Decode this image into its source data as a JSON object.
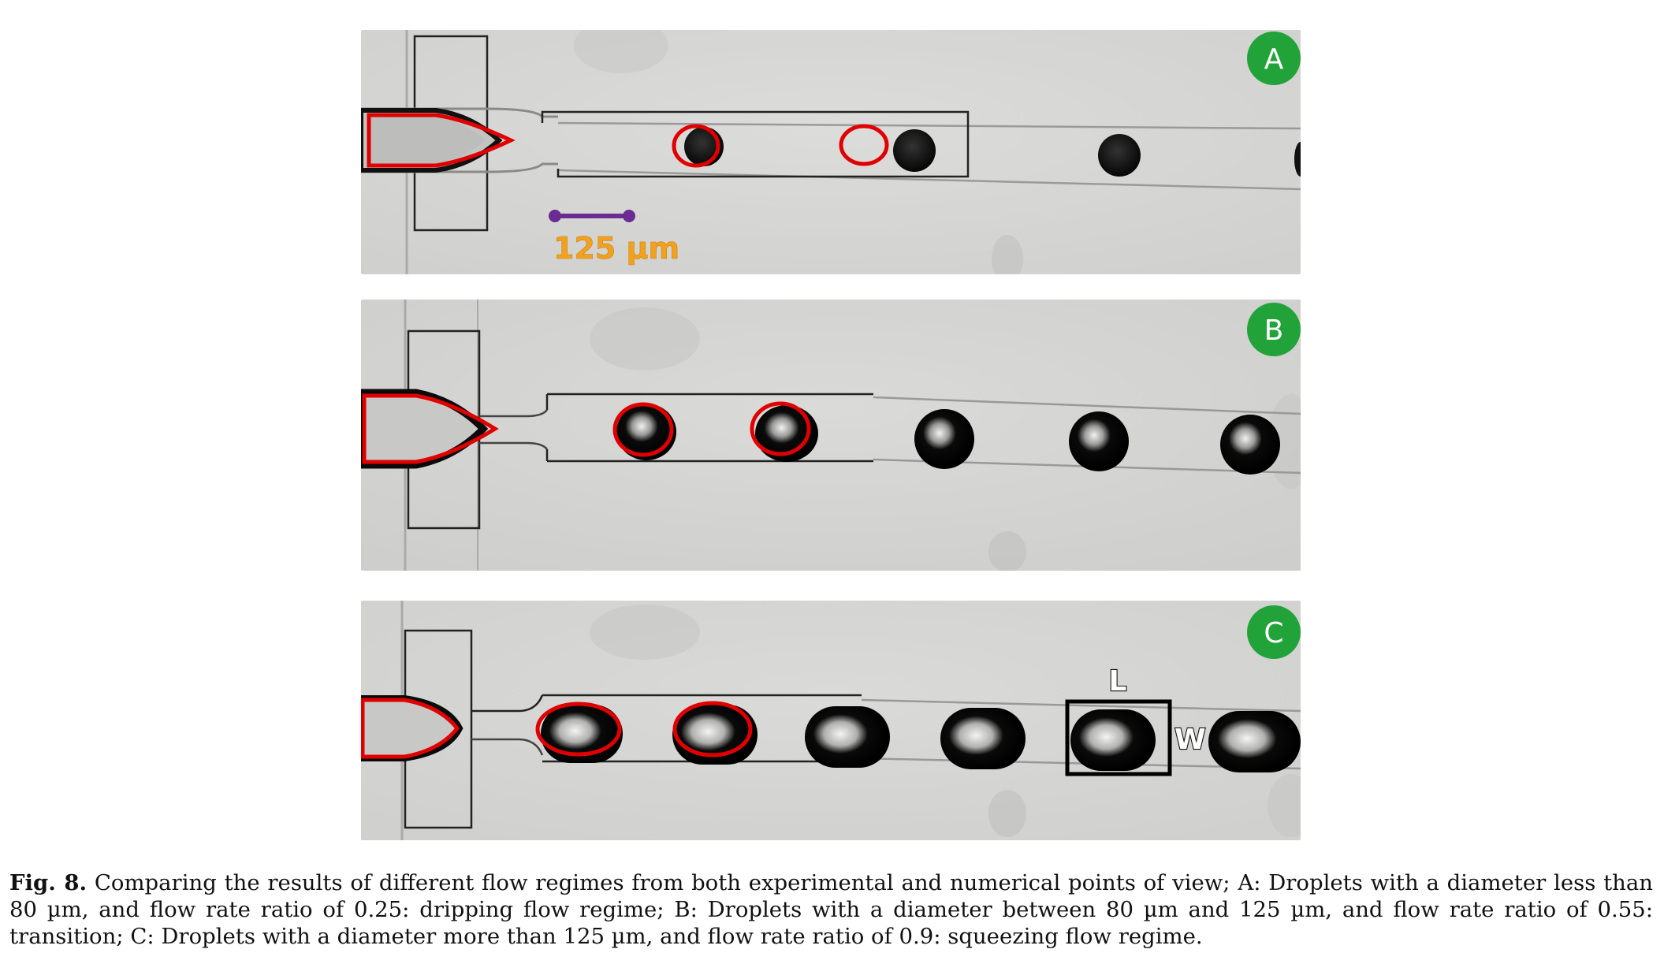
{
  "panels": {
    "a": {
      "label": "A"
    },
    "b": {
      "label": "B"
    },
    "c": {
      "label": "C",
      "length_label": "L",
      "width_label": "W"
    }
  },
  "scale_bar": {
    "text": "125 µm",
    "color": "#6a2c91"
  },
  "caption": {
    "label": "Fig. 8.",
    "text": "Comparing the results of different flow regimes from both experimental and numerical points of view; A: Droplets with a diameter less than 80 µm, and flow rate ratio of 0.25: dripping flow regime; B: Droplets with a diameter between 80 µm and 125 µm, and flow rate ratio of 0.55: transition; C: Droplets with a diameter more than 125 µm, and flow rate ratio of 0.9: squeezing flow regime."
  },
  "colors": {
    "badge": "#22a33a",
    "numerical_outline": "#e00000",
    "background": "#d6d6d4"
  },
  "icons": [
    "panel-badge",
    "scale-bar",
    "droplet"
  ]
}
